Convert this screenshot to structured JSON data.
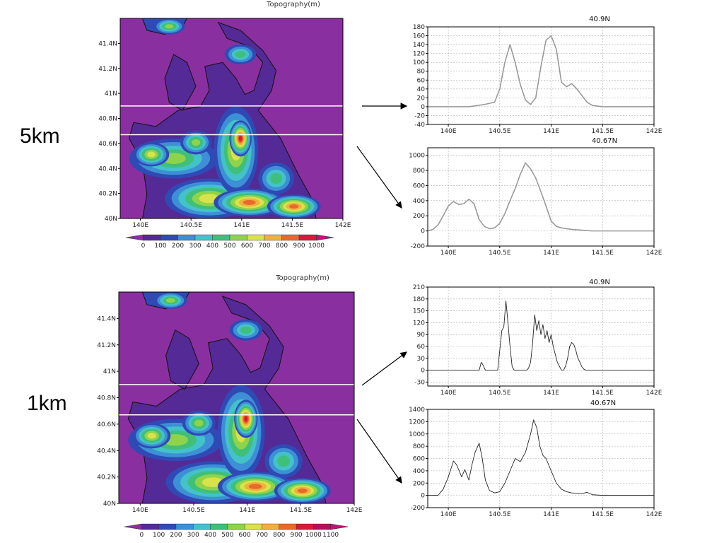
{
  "labels": {
    "res_5km": "5km",
    "res_1km": "1km"
  },
  "colors": {
    "sea": "#8a2fa0",
    "low": "#542a96",
    "levels": [
      "#542a96",
      "#2f4ab5",
      "#3d8fd6",
      "#43c2c9",
      "#3fbf7a",
      "#8fd34b",
      "#d8e24a",
      "#f0b040",
      "#e86a2a",
      "#d81a3a",
      "#b0125a"
    ],
    "marker": "#ffffff",
    "profile5": "#9a9a9a",
    "profile1": "#222222",
    "coast": "#111111"
  },
  "maps": [
    {
      "id": "map5",
      "title": "Topography(m)",
      "resolution": "5km",
      "lat_ticks": [
        "40N",
        "40.2N",
        "40.4N",
        "40.6N",
        "40.8N",
        "41N",
        "41.2N",
        "41.4N"
      ],
      "lon_ticks": [
        "140E",
        "140.5E",
        "141E",
        "141.5E",
        "142E"
      ],
      "lat_range": [
        40,
        41.6
      ],
      "lon_range": [
        139.8,
        142
      ],
      "marker_lats": [
        40.9,
        40.67
      ],
      "colorbar_ticks": [
        "0",
        "100",
        "200",
        "300",
        "400",
        "500",
        "600",
        "700",
        "800",
        "900",
        "1000"
      ]
    },
    {
      "id": "map1",
      "title": "Topography(m)",
      "resolution": "1km",
      "lat_ticks": [
        "40N",
        "40.2N",
        "40.4N",
        "40.6N",
        "40.8N",
        "41N",
        "41.2N",
        "41.4N"
      ],
      "lon_ticks": [
        "140E",
        "140.5E",
        "141E",
        "141.5E",
        "142E"
      ],
      "lat_range": [
        40,
        41.6
      ],
      "lon_range": [
        139.8,
        142
      ],
      "marker_lats": [
        40.9,
        40.67
      ],
      "colorbar_ticks": [
        "0",
        "100",
        "200",
        "300",
        "400",
        "500",
        "600",
        "700",
        "800",
        "900",
        "1000",
        "1100"
      ]
    }
  ],
  "chart_data": [
    {
      "type": "line",
      "title": "40.9N",
      "resolution": "5km",
      "xlim": [
        139.8,
        142
      ],
      "ylim": [
        -40,
        180
      ],
      "x_ticks": [
        "140E",
        "140.5E",
        "141E",
        "141.5E",
        "142E"
      ],
      "y_ticks": [
        "-40",
        "-20",
        "0",
        "20",
        "40",
        "60",
        "80",
        "100",
        "120",
        "140",
        "160",
        "180"
      ],
      "x": [
        139.8,
        140.2,
        140.35,
        140.45,
        140.5,
        140.55,
        140.6,
        140.65,
        140.7,
        140.75,
        140.8,
        140.85,
        140.9,
        140.95,
        141.0,
        141.05,
        141.1,
        141.15,
        141.2,
        141.25,
        141.3,
        141.35,
        141.4,
        141.5,
        141.6,
        141.8,
        142.0
      ],
      "y": [
        0,
        0,
        5,
        10,
        40,
        100,
        140,
        100,
        50,
        15,
        5,
        20,
        90,
        150,
        160,
        130,
        55,
        45,
        52,
        40,
        25,
        10,
        3,
        0,
        0,
        0,
        0
      ]
    },
    {
      "type": "line",
      "title": "40.67N",
      "resolution": "5km",
      "xlim": [
        139.8,
        142
      ],
      "ylim": [
        -200,
        1100
      ],
      "x_ticks": [
        "140E",
        "140.5E",
        "141E",
        "141.5E",
        "142E"
      ],
      "y_ticks": [
        "-200",
        "0",
        "200",
        "400",
        "600",
        "800",
        "1000"
      ],
      "x": [
        139.8,
        139.85,
        139.9,
        139.95,
        140.0,
        140.05,
        140.1,
        140.15,
        140.2,
        140.25,
        140.3,
        140.35,
        140.4,
        140.45,
        140.5,
        140.55,
        140.6,
        140.65,
        140.7,
        140.75,
        140.8,
        140.85,
        140.9,
        140.95,
        141.0,
        141.05,
        141.1,
        141.15,
        141.2,
        141.3,
        141.4,
        141.5,
        141.6,
        142.0
      ],
      "y": [
        0,
        20,
        80,
        200,
        330,
        390,
        350,
        360,
        420,
        360,
        150,
        60,
        30,
        40,
        100,
        230,
        400,
        560,
        750,
        900,
        820,
        700,
        520,
        330,
        130,
        60,
        40,
        30,
        20,
        10,
        0,
        0,
        0,
        0
      ]
    },
    {
      "type": "line",
      "title": "40.9N",
      "resolution": "1km",
      "xlim": [
        139.8,
        142
      ],
      "ylim": [
        -40,
        210
      ],
      "x_ticks": [
        "140E",
        "140.5E",
        "141E",
        "141.5E",
        "142E"
      ],
      "y_ticks": [
        "-30",
        "0",
        "30",
        "60",
        "90",
        "120",
        "150",
        "180",
        "210"
      ],
      "x": [
        139.8,
        140.3,
        140.32,
        140.34,
        140.36,
        140.48,
        140.5,
        140.52,
        140.54,
        140.56,
        140.58,
        140.6,
        140.62,
        140.64,
        140.76,
        140.78,
        140.8,
        140.82,
        140.84,
        140.86,
        140.88,
        140.9,
        140.92,
        140.94,
        140.96,
        140.98,
        141.0,
        141.02,
        141.04,
        141.06,
        141.08,
        141.1,
        141.12,
        141.14,
        141.16,
        141.18,
        141.2,
        141.22,
        141.24,
        141.26,
        141.28,
        141.3,
        141.32,
        141.34,
        141.36,
        141.5,
        142.0
      ],
      "y": [
        0,
        0,
        20,
        12,
        0,
        0,
        50,
        100,
        110,
        175,
        120,
        60,
        10,
        0,
        0,
        5,
        20,
        70,
        140,
        100,
        125,
        90,
        115,
        80,
        100,
        70,
        90,
        60,
        40,
        20,
        10,
        0,
        0,
        10,
        30,
        60,
        70,
        65,
        50,
        30,
        20,
        8,
        2,
        0,
        0,
        0,
        0
      ]
    },
    {
      "type": "line",
      "title": "40.67N",
      "resolution": "1km",
      "xlim": [
        139.8,
        142
      ],
      "ylim": [
        -200,
        1400
      ],
      "x_ticks": [
        "140E",
        "140.5E",
        "141E",
        "141.5E",
        "142E"
      ],
      "y_ticks": [
        "-200",
        "0",
        "200",
        "400",
        "600",
        "800",
        "1000",
        "1200",
        "1400"
      ],
      "x": [
        139.8,
        139.9,
        139.95,
        140.0,
        140.05,
        140.08,
        140.1,
        140.13,
        140.16,
        140.2,
        140.23,
        140.26,
        140.3,
        140.33,
        140.36,
        140.4,
        140.45,
        140.5,
        140.55,
        140.6,
        140.65,
        140.7,
        140.75,
        140.8,
        140.83,
        140.86,
        140.89,
        140.92,
        140.95,
        141.0,
        141.05,
        141.1,
        141.15,
        141.2,
        141.3,
        141.35,
        141.4,
        141.5,
        142.0
      ],
      "y": [
        0,
        0,
        100,
        300,
        560,
        500,
        420,
        300,
        420,
        250,
        500,
        700,
        850,
        600,
        250,
        80,
        40,
        60,
        200,
        400,
        600,
        550,
        700,
        1000,
        1230,
        1100,
        800,
        650,
        600,
        400,
        200,
        100,
        60,
        40,
        30,
        50,
        10,
        0,
        0
      ]
    }
  ]
}
